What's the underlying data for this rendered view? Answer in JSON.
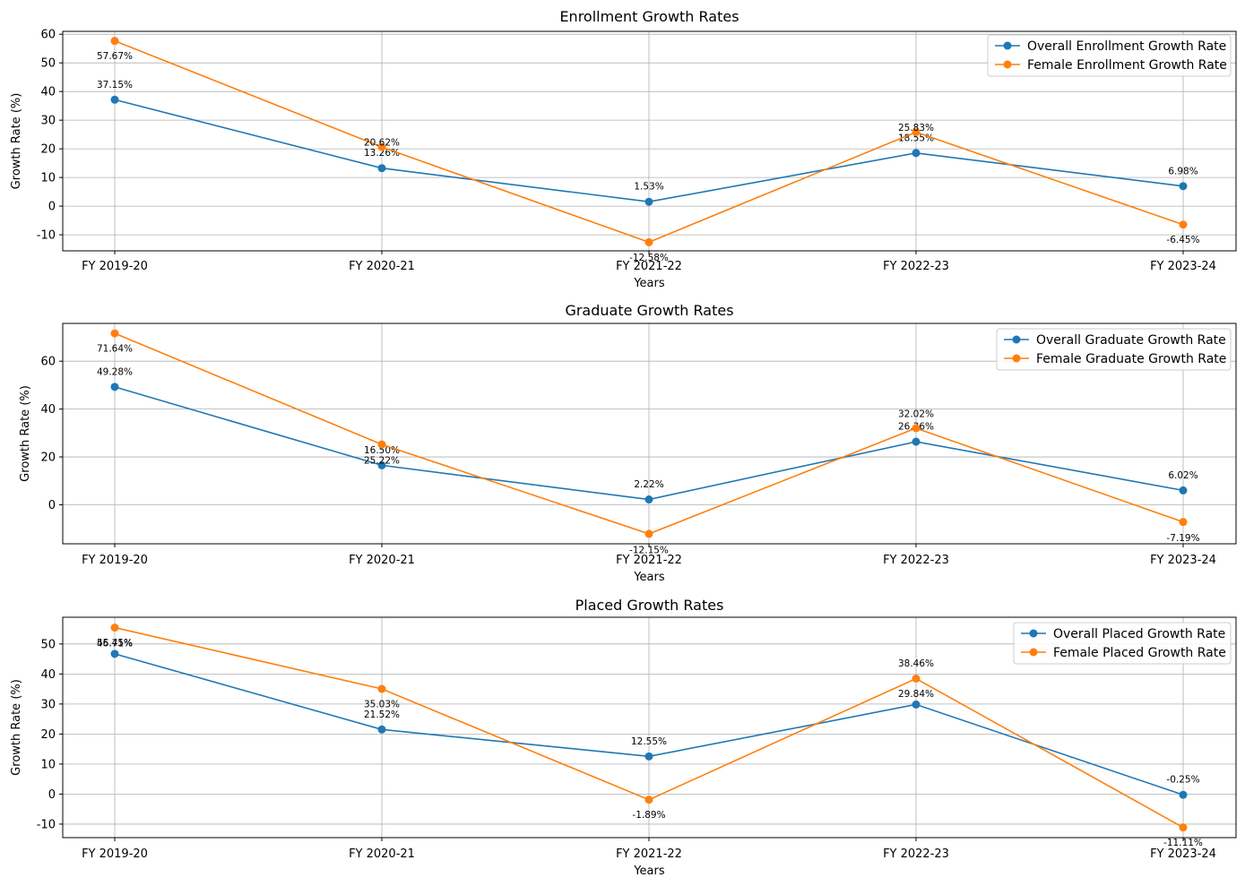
{
  "chart_data": [
    {
      "type": "line",
      "title": "Enrollment Growth Rates",
      "xlabel": "Years",
      "ylabel": "Growth Rate (%)",
      "categories": [
        "FY 2019-20",
        "FY 2020-21",
        "FY 2021-22",
        "FY 2022-23",
        "FY 2023-24"
      ],
      "ylim": [
        -15.6,
        61.0
      ],
      "yticks": [
        -10,
        0,
        10,
        20,
        30,
        40,
        50,
        60
      ],
      "grid": true,
      "legend_position": "top-right",
      "series": [
        {
          "name": "Overall Enrollment Growth Rate",
          "color": "#1f77b4",
          "values": [
            37.15,
            13.26,
            1.53,
            18.55,
            6.98
          ],
          "labels": [
            "37.15%",
            "13.26%",
            "1.53%",
            "18.55%",
            "6.98%"
          ]
        },
        {
          "name": "Female Enrollment Growth Rate",
          "color": "#ff7f0e",
          "values": [
            57.67,
            20.62,
            -12.58,
            25.83,
            -6.45
          ],
          "labels": [
            "57.67%",
            "20.62%",
            "-12.58%",
            "25.83%",
            "-6.45%"
          ]
        }
      ]
    },
    {
      "type": "line",
      "title": "Graduate Growth Rates",
      "xlabel": "Years",
      "ylabel": "Growth Rate (%)",
      "categories": [
        "FY 2019-20",
        "FY 2020-21",
        "FY 2021-22",
        "FY 2022-23",
        "FY 2023-24"
      ],
      "ylim": [
        -16.3,
        75.8
      ],
      "yticks": [
        0,
        20,
        40,
        60
      ],
      "grid": true,
      "legend_position": "top-right",
      "series": [
        {
          "name": "Overall Graduate Growth Rate",
          "color": "#1f77b4",
          "values": [
            49.28,
            16.5,
            2.22,
            26.36,
            6.02
          ],
          "labels": [
            "49.28%",
            "16.50%",
            "2.22%",
            "26.36%",
            "6.02%"
          ]
        },
        {
          "name": "Female Graduate Growth Rate",
          "color": "#ff7f0e",
          "values": [
            71.64,
            25.22,
            -12.15,
            32.02,
            -7.19
          ],
          "labels": [
            "71.64%",
            "25.22%",
            "-12.15%",
            "32.02%",
            "-7.19%"
          ]
        }
      ]
    },
    {
      "type": "line",
      "title": "Placed Growth Rates",
      "xlabel": "Years",
      "ylabel": "Growth Rate (%)",
      "categories": [
        "FY 2019-20",
        "FY 2020-21",
        "FY 2021-22",
        "FY 2022-23",
        "FY 2023-24"
      ],
      "ylim": [
        -14.5,
        58.9
      ],
      "yticks": [
        -10,
        0,
        10,
        20,
        30,
        40,
        50
      ],
      "grid": true,
      "legend_position": "top-right",
      "series": [
        {
          "name": "Overall Placed Growth Rate",
          "color": "#1f77b4",
          "values": [
            46.71,
            21.52,
            12.55,
            29.84,
            -0.25
          ],
          "labels": [
            "46.71%",
            "21.52%",
            "12.55%",
            "29.84%",
            "-0.25%"
          ]
        },
        {
          "name": "Female Placed Growth Rate",
          "color": "#ff7f0e",
          "values": [
            55.45,
            35.03,
            -1.89,
            38.46,
            -11.11
          ],
          "labels": [
            "55.45%",
            "35.03%",
            "-1.89%",
            "38.46%",
            "-11.11%"
          ]
        }
      ]
    }
  ]
}
